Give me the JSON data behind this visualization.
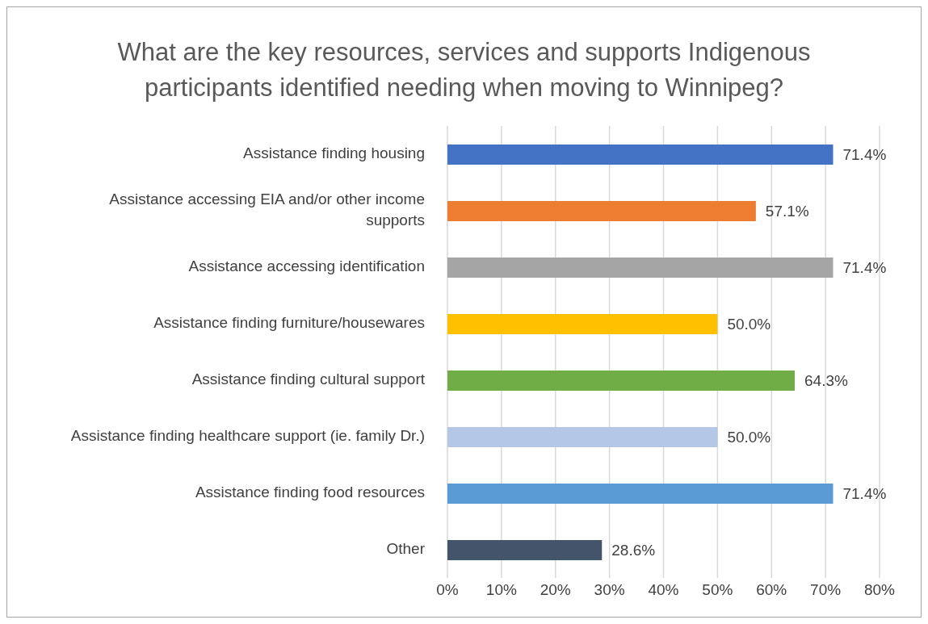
{
  "chart_data": {
    "type": "bar",
    "orientation": "horizontal",
    "title": "What are the key resources, services and supports Indigenous participants identified needing when moving to Winnipeg?",
    "categories": [
      "Assistance finding housing",
      "Assistance accessing EIA and/or other income supports",
      "Assistance accessing identification",
      "Assistance finding furniture/housewares",
      "Assistance finding cultural support",
      "Assistance finding healthcare support (ie. family Dr.)",
      "Assistance finding food resources",
      "Other"
    ],
    "values": [
      71.4,
      57.1,
      71.4,
      50.0,
      64.3,
      50.0,
      71.4,
      28.6
    ],
    "colors": [
      "#4472c4",
      "#ed7d31",
      "#a5a5a5",
      "#ffc000",
      "#70ad47",
      "#b4c7e7",
      "#5b9bd5",
      "#44546a"
    ],
    "value_labels": [
      "71.4%",
      "57.1%",
      "71.4%",
      "50.0%",
      "64.3%",
      "50.0%",
      "71.4%",
      "28.6%"
    ],
    "xlim": [
      0,
      80
    ],
    "xticks": [
      {
        "value": 0,
        "label": "0%"
      },
      {
        "value": 10,
        "label": "10%"
      },
      {
        "value": 20,
        "label": "20%"
      },
      {
        "value": 30,
        "label": "30%"
      },
      {
        "value": 40,
        "label": "40%"
      },
      {
        "value": 50,
        "label": "50%"
      },
      {
        "value": 60,
        "label": "60%"
      },
      {
        "value": 70,
        "label": "70%"
      },
      {
        "value": 80,
        "label": "80%"
      }
    ],
    "grid": "x"
  }
}
